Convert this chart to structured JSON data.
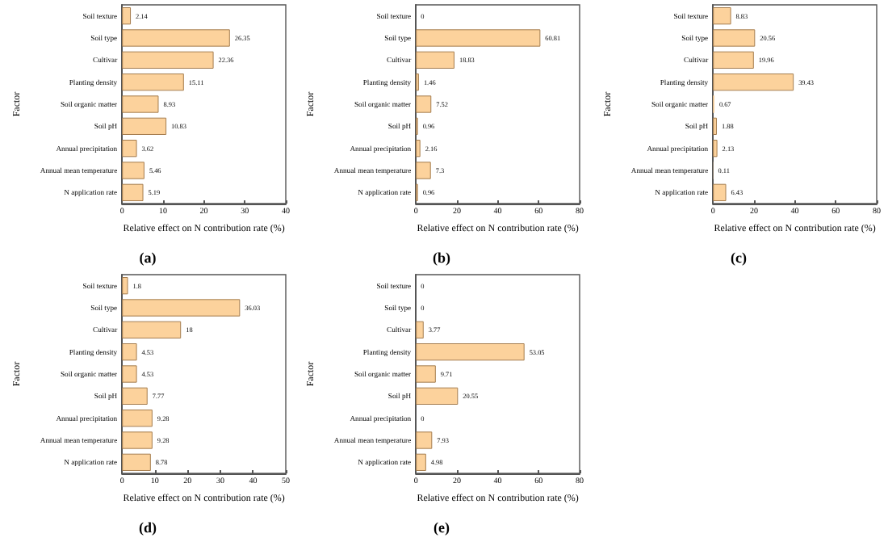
{
  "chart_data": [
    {
      "type": "bar",
      "orientation": "horizontal",
      "annotations": [
        "(a)"
      ],
      "xlabel": "Relative effect on N contribution rate (%)",
      "ylabel": "Factor",
      "categories": [
        "Soil texture",
        "Soil type",
        "Cultivar",
        "Planting density",
        "Soil organic matter",
        "Soil pH",
        "Annual precipitation",
        "Annual mean temperature",
        "N application rate"
      ],
      "values": [
        2.14,
        26.35,
        22.36,
        15.11,
        8.93,
        10.83,
        3.62,
        5.46,
        5.19
      ],
      "color": "#fcd29c",
      "data_labels": true,
      "xlim": [
        0,
        40
      ],
      "xticks": [
        0,
        10,
        20,
        30,
        40
      ],
      "grid": false
    },
    {
      "type": "bar",
      "orientation": "horizontal",
      "annotations": [
        "(b)"
      ],
      "xlabel": "Relative effect on N contribution rate (%)",
      "ylabel": "Factor",
      "categories": [
        "Soil texture",
        "Soil type",
        "Cultivar",
        "Planting density",
        "Soil organic matter",
        "Soil pH",
        "Annual precipitation",
        "Annual mean temperature",
        "N application rate"
      ],
      "values": [
        0,
        60.81,
        18.83,
        1.46,
        7.52,
        0.96,
        2.16,
        7.3,
        0.96
      ],
      "color": "#fcd29c",
      "data_labels": true,
      "xlim": [
        0,
        80
      ],
      "xticks": [
        0,
        20,
        40,
        60,
        80
      ],
      "grid": false
    },
    {
      "type": "bar",
      "orientation": "horizontal",
      "annotations": [
        "(c)"
      ],
      "xlabel": "Relative effect on N contribution rate (%)",
      "ylabel": "Factor",
      "categories": [
        "Soil texture",
        "Soil type",
        "Cultivar",
        "Planting density",
        "Soil organic matter",
        "Soil pH",
        "Annual precipitation",
        "Annual mean temperature",
        "N application rate"
      ],
      "values": [
        8.83,
        20.56,
        19.96,
        39.43,
        0.67,
        1.88,
        2.13,
        0.11,
        6.43
      ],
      "color": "#fcd29c",
      "data_labels": true,
      "xlim": [
        0,
        80
      ],
      "xticks": [
        0,
        20,
        40,
        60,
        80
      ],
      "grid": false
    },
    {
      "type": "bar",
      "orientation": "horizontal",
      "annotations": [
        "(d)"
      ],
      "xlabel": "Relative effect on N contribution rate (%)",
      "ylabel": "Factor",
      "categories": [
        "Soil texture",
        "Soil type",
        "Cultivar",
        "Planting density",
        "Soil organic matter",
        "Soil pH",
        "Annual precipitation",
        "Annual mean temperature",
        "N application rate"
      ],
      "values": [
        1.8,
        36.03,
        18,
        4.53,
        4.53,
        7.77,
        9.28,
        9.28,
        8.78
      ],
      "color": "#fcd29c",
      "data_labels": true,
      "xlim": [
        0,
        50
      ],
      "xticks": [
        0,
        10,
        20,
        30,
        40,
        50
      ],
      "grid": false
    },
    {
      "type": "bar",
      "orientation": "horizontal",
      "annotations": [
        "(e)"
      ],
      "xlabel": "Relative effect on N contribution rate (%)",
      "ylabel": "Factor",
      "categories": [
        "Soil texture",
        "Soil type",
        "Cultivar",
        "Planting density",
        "Soil organic matter",
        "Soil pH",
        "Annual precipitation",
        "Annual mean temperature",
        "N application rate"
      ],
      "values": [
        0,
        0,
        3.77,
        53.05,
        9.71,
        20.55,
        0,
        7.93,
        4.98
      ],
      "color": "#fcd29c",
      "data_labels": true,
      "xlim": [
        0,
        80
      ],
      "xticks": [
        0,
        20,
        40,
        60,
        80
      ],
      "grid": false
    }
  ]
}
